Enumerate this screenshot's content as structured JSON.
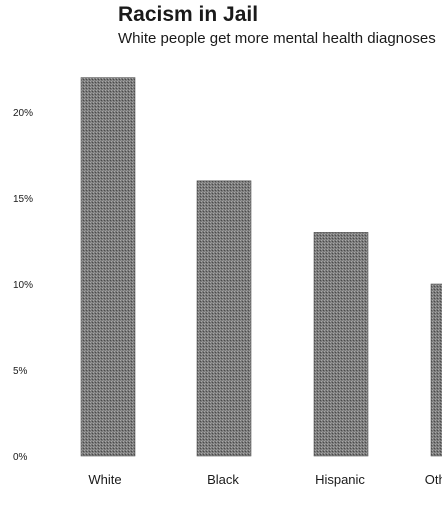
{
  "header": {
    "title": "Racism in Jail",
    "subtitle": "White people get more mental health diagnoses"
  },
  "chart_data": {
    "type": "bar",
    "title": "Racism in Jail",
    "subtitle": "White people get more mental health diagnoses",
    "xlabel": "",
    "ylabel": "",
    "categories": [
      "White",
      "Black",
      "Hispanic",
      "Other"
    ],
    "values": [
      22,
      16,
      13,
      10
    ],
    "unit": "%",
    "ylim": [
      0,
      20
    ],
    "yticks": [
      "0%",
      "5%",
      "10%",
      "15%",
      "20%"
    ],
    "bar_color": "#666666",
    "grid": false,
    "legend": "none"
  }
}
